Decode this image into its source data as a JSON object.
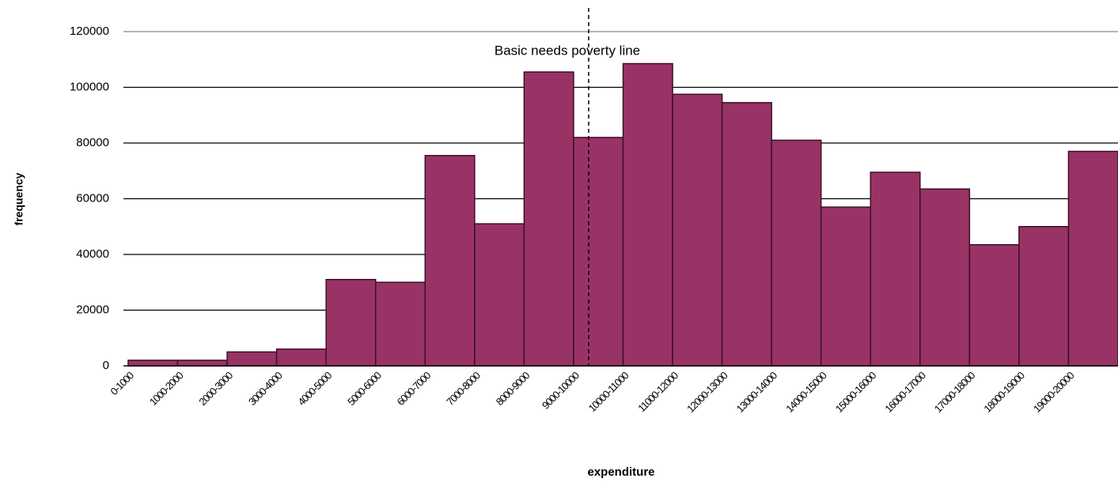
{
  "chart_data": {
    "type": "bar",
    "x_label": "expenditure",
    "y_label": "frequency",
    "annotation": "Basic needs poverty line",
    "categories": [
      "0-1000",
      "1000-2000",
      "2000-3000",
      "3000-4000",
      "4000-5000",
      "5000-6000",
      "6000-7000",
      "7000-8000",
      "8000-9000",
      "9000-10000",
      "10000-11000",
      "11000-12000",
      "12000-13000",
      "13000-14000",
      "14000-15000",
      "15000-16000",
      "16000-17000",
      "17000-18000",
      "18000-19000",
      "19000-20000"
    ],
    "values": [
      2000,
      2000,
      5000,
      6000,
      31000,
      30000,
      75500,
      51000,
      105500,
      82000,
      108500,
      97500,
      94500,
      81000,
      57000,
      69500,
      63500,
      43500,
      50000,
      77000
    ],
    "color": "#993366",
    "ylim": [
      0,
      120000
    ],
    "yticks": [
      0,
      20000,
      40000,
      60000,
      80000,
      100000,
      120000
    ],
    "grid": true
  }
}
